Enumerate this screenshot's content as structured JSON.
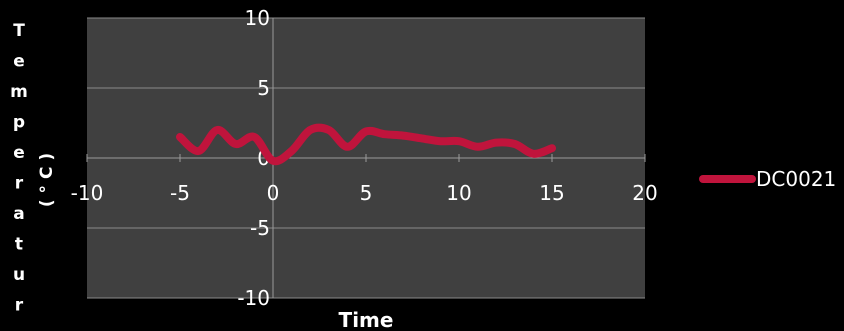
{
  "chart_data": {
    "type": "scatter",
    "xlabel": "Time",
    "ylabel_left": "Temperatur",
    "ylabel_right": "( ° C )",
    "xlim": [
      -10,
      20
    ],
    "ylim": [
      -10,
      10
    ],
    "x_ticks": [
      -10,
      -5,
      0,
      5,
      10,
      15,
      20
    ],
    "y_ticks": [
      -10,
      -5,
      0,
      5,
      10
    ],
    "grid": true,
    "legend_position": "right",
    "series": [
      {
        "name": "DC0021",
        "color": "#c0143c",
        "x": [
          -5,
          -4,
          -3,
          -2,
          -1,
          0,
          1,
          2,
          3,
          4,
          5,
          6,
          7,
          8,
          9,
          10,
          11,
          12,
          13,
          14,
          15
        ],
        "y": [
          1.5,
          0.5,
          2.0,
          1.0,
          1.5,
          -0.2,
          0.5,
          2.0,
          2.0,
          0.8,
          1.9,
          1.7,
          1.6,
          1.4,
          1.2,
          1.2,
          0.8,
          1.1,
          1.0,
          0.3,
          0.7
        ]
      }
    ]
  }
}
